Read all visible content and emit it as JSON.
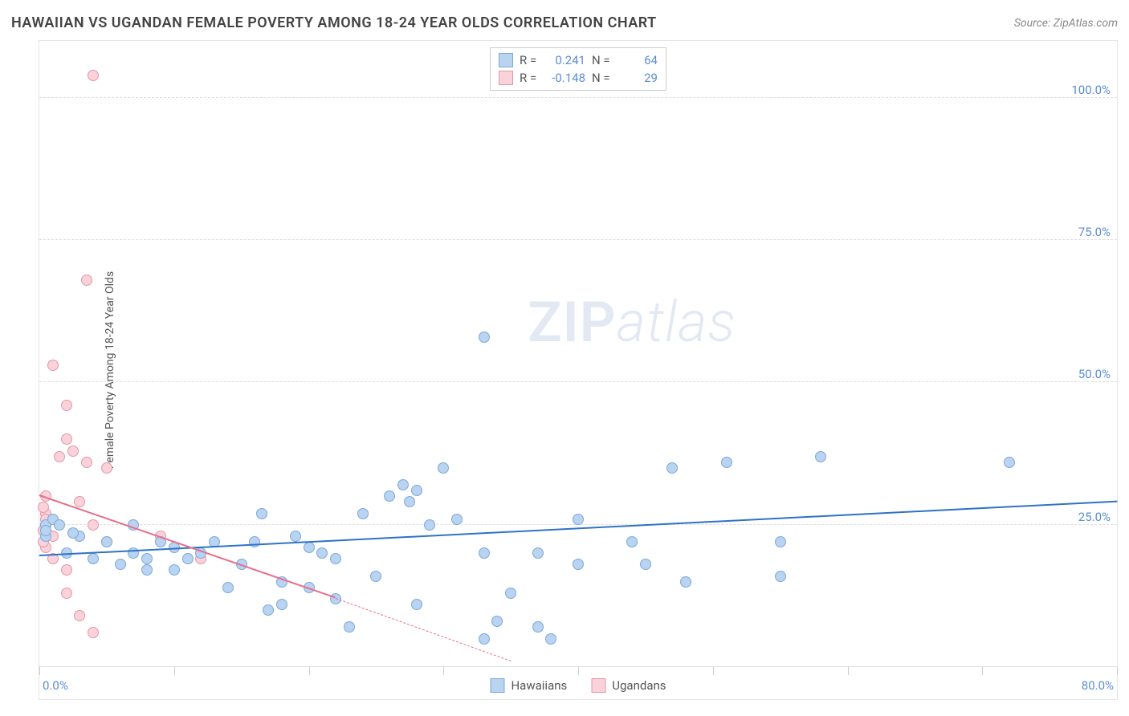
{
  "header": {
    "title": "HAWAIIAN VS UGANDAN FEMALE POVERTY AMONG 18-24 YEAR OLDS CORRELATION CHART",
    "source_label": "Source: ",
    "source_name": "ZipAtlas.com"
  },
  "watermark": {
    "prefix": "ZIP",
    "suffix": "atlas"
  },
  "chart": {
    "type": "scatter",
    "background_color": "#ffffff",
    "grid_color": "#dddddd",
    "border_color": "#e5e5e5",
    "axis_label_color": "#5b8dd6",
    "y_axis_title": "Female Poverty Among 18-24 Year Olds",
    "xlim": [
      0,
      80
    ],
    "ylim": [
      0,
      110
    ],
    "y_ticks": [
      {
        "v": 25,
        "label": "25.0%"
      },
      {
        "v": 50,
        "label": "50.0%"
      },
      {
        "v": 75,
        "label": "75.0%"
      },
      {
        "v": 100,
        "label": "100.0%"
      }
    ],
    "x_ticks": [
      0,
      10,
      20,
      30,
      40,
      50,
      60,
      70,
      80
    ],
    "x_tick_labels": {
      "start": "0.0%",
      "end": "80.0%"
    },
    "marker_radius": 7,
    "marker_stroke_width": 1.2,
    "series": {
      "hawaiians": {
        "label": "Hawaiians",
        "fill": "#b9d3f0",
        "stroke": "#7aa9dd",
        "r_value": "0.241",
        "n_value": "64",
        "trend": {
          "color": "#2f72c7",
          "x1": 0,
          "y1": 19.5,
          "x2": 80,
          "y2": 29,
          "width": 2
        },
        "points": [
          [
            16.5,
            27
          ],
          [
            0.5,
            25
          ],
          [
            4,
            19
          ],
          [
            7,
            25
          ],
          [
            10,
            21
          ],
          [
            12,
            20
          ],
          [
            3,
            23
          ],
          [
            8,
            17
          ],
          [
            9,
            22
          ],
          [
            13,
            22
          ],
          [
            15,
            18
          ],
          [
            14,
            14
          ],
          [
            17,
            10
          ],
          [
            18,
            11
          ],
          [
            16,
            22
          ],
          [
            18,
            15
          ],
          [
            20,
            21
          ],
          [
            22,
            19
          ],
          [
            24,
            27
          ],
          [
            25,
            16
          ],
          [
            26,
            30
          ],
          [
            27,
            32
          ],
          [
            27.5,
            29
          ],
          [
            28,
            31
          ],
          [
            29,
            25
          ],
          [
            30,
            35
          ],
          [
            33,
            20
          ],
          [
            28,
            11
          ],
          [
            22,
            12
          ],
          [
            23,
            7
          ],
          [
            31,
            26
          ],
          [
            33,
            5
          ],
          [
            34,
            8
          ],
          [
            37,
            7
          ],
          [
            37,
            20
          ],
          [
            35,
            13
          ],
          [
            33,
            58
          ],
          [
            40,
            26
          ],
          [
            40,
            18
          ],
          [
            44,
            22
          ],
          [
            45,
            18
          ],
          [
            47,
            35
          ],
          [
            48,
            15
          ],
          [
            51,
            36
          ],
          [
            55,
            22
          ],
          [
            55,
            16
          ],
          [
            58,
            37
          ],
          [
            72,
            36
          ],
          [
            7,
            20
          ],
          [
            10,
            17
          ],
          [
            2,
            20
          ],
          [
            2.5,
            23.5
          ],
          [
            0.5,
            23
          ],
          [
            0.5,
            24
          ],
          [
            1,
            26
          ],
          [
            1.5,
            25
          ],
          [
            5,
            22
          ],
          [
            8,
            19
          ],
          [
            6,
            18
          ],
          [
            11,
            19
          ],
          [
            19,
            23
          ],
          [
            20,
            14
          ],
          [
            21,
            20
          ],
          [
            38,
            5
          ]
        ]
      },
      "ugandans": {
        "label": "Ugandans",
        "fill": "#f9d2da",
        "stroke": "#e894a9",
        "r_value": "-0.148",
        "n_value": "29",
        "trend": {
          "color": "#e66f8c",
          "x1": 0,
          "y1": 30,
          "x2": 22,
          "y2": 12,
          "width": 2,
          "dash_x1": 22,
          "dash_y1": 12,
          "dash_x2": 35,
          "dash_y2": 1
        },
        "points": [
          [
            4,
            104
          ],
          [
            3.5,
            68
          ],
          [
            1,
            53
          ],
          [
            2,
            40
          ],
          [
            2.5,
            38
          ],
          [
            2,
            46
          ],
          [
            3.5,
            36
          ],
          [
            5,
            35
          ],
          [
            0.5,
            27
          ],
          [
            0.5,
            25
          ],
          [
            1,
            23
          ],
          [
            0.5,
            21
          ],
          [
            1,
            19
          ],
          [
            0.3,
            24
          ],
          [
            0.5,
            26
          ],
          [
            0.3,
            28
          ],
          [
            0.5,
            30
          ],
          [
            3,
            29
          ],
          [
            4,
            25
          ],
          [
            5,
            22
          ],
          [
            7,
            25
          ],
          [
            9,
            23
          ],
          [
            2,
            13
          ],
          [
            3,
            9
          ],
          [
            4,
            6
          ],
          [
            12,
            19
          ],
          [
            1.5,
            37
          ],
          [
            0.3,
            22
          ],
          [
            2,
            17
          ]
        ]
      }
    },
    "stats_labels": {
      "r": "R  =",
      "n": "N  ="
    },
    "legend": [
      {
        "key": "hawaiians",
        "label": "Hawaiians"
      },
      {
        "key": "ugandans",
        "label": "Ugandans"
      }
    ]
  }
}
